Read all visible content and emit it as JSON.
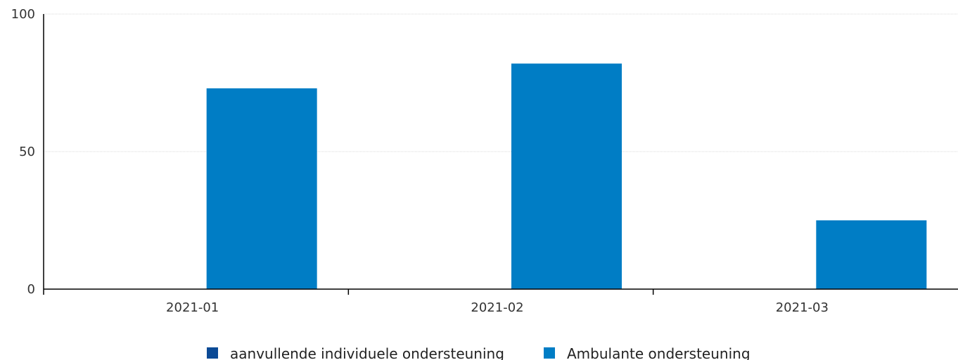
{
  "chart_data": {
    "type": "bar",
    "categories": [
      "2021-01",
      "2021-02",
      "2021-03"
    ],
    "series": [
      {
        "name": "aanvullende individuele ondersteuning",
        "values": [
          0,
          0,
          0
        ],
        "color": "#0b4a96"
      },
      {
        "name": "Ambulante ondersteuning",
        "values": [
          73,
          82,
          25
        ],
        "color": "#007dc5"
      }
    ],
    "yticks": [
      0,
      50,
      100
    ],
    "ylim": [
      0,
      100
    ],
    "grid": true,
    "legend_position": "bottom"
  }
}
